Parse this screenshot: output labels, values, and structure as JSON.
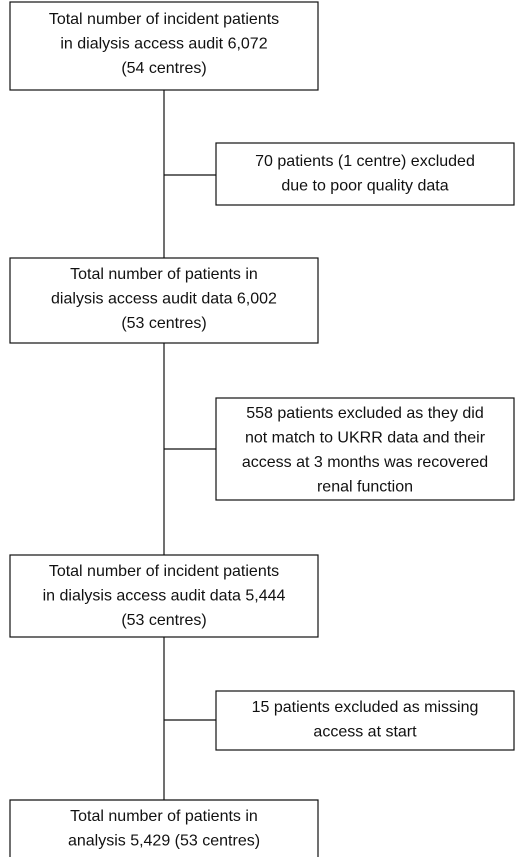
{
  "nodes": [
    {
      "lines": [
        "Total number of incident patients",
        "in dialysis access audit 6,072",
        "(54 centres)"
      ]
    },
    {
      "lines": [
        "70 patients (1 centre) excluded",
        "due to poor quality data"
      ]
    },
    {
      "lines": [
        "Total number of patients in",
        "dialysis access audit data 6,002",
        "(53 centres)"
      ]
    },
    {
      "lines": [
        "558 patients excluded as they did",
        "not match to UKRR data and their",
        "access at 3 months was recovered",
        "renal function"
      ]
    },
    {
      "lines": [
        "Total number of incident patients",
        "in dialysis access audit data 5,444",
        "(53 centres)"
      ]
    },
    {
      "lines": [
        "15 patients excluded as missing",
        "access at start"
      ]
    },
    {
      "lines": [
        "Total number of patients in",
        "analysis 5,429 (53 centres)"
      ]
    }
  ]
}
